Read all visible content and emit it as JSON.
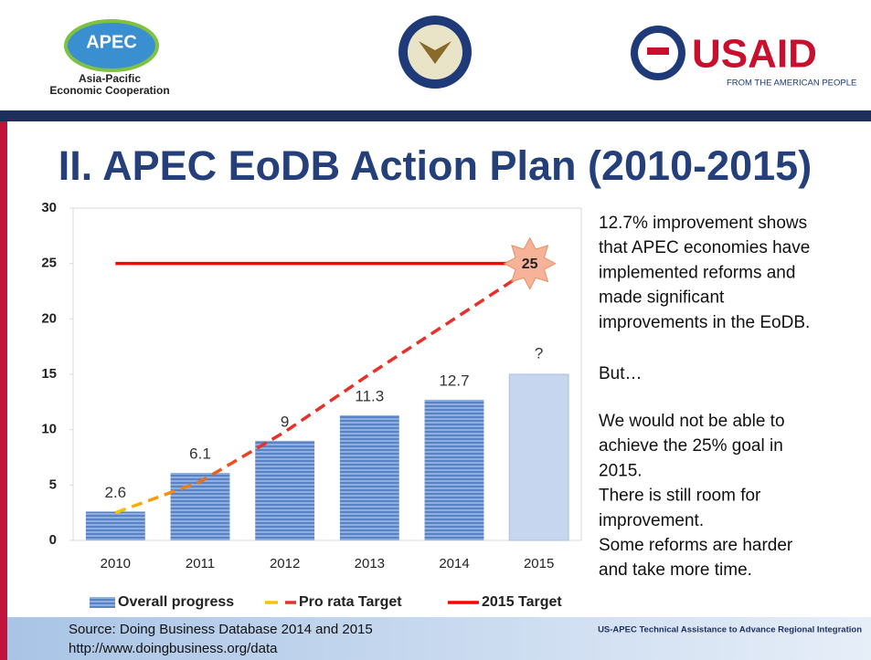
{
  "header": {
    "apec_logo": {
      "mark": "APEC",
      "line1": "Asia-Pacific",
      "line2": "Economic Cooperation"
    },
    "usaid_logo": {
      "mark": "USAID",
      "tagline": "FROM THE AMERICAN PEOPLE"
    }
  },
  "title": "II. APEC EoDB Action Plan (2010-2015)",
  "chart_data": {
    "type": "bar",
    "categories": [
      "2010",
      "2011",
      "2012",
      "2013",
      "2014",
      "2015"
    ],
    "ylim": [
      0,
      30
    ],
    "yticks": [
      0,
      5,
      10,
      15,
      20,
      25,
      30
    ],
    "series": [
      {
        "name": "Overall progress",
        "type": "bar",
        "color": "#6d93cf",
        "values": [
          2.6,
          6.1,
          9,
          11.3,
          12.7,
          null
        ],
        "value_labels": [
          "2.6",
          "6.1",
          "9",
          "11.3",
          "12.7",
          null
        ]
      },
      {
        "name": "Pro rata Target",
        "type": "line",
        "dashed": true,
        "color": "#e8302a",
        "start_color": "#f5c400",
        "values": [
          2.5,
          5.3,
          9.8,
          15,
          20,
          25
        ]
      },
      {
        "name": "2015 Target",
        "type": "line",
        "dashed": false,
        "color": "#ff0000",
        "values": [
          25,
          25,
          25,
          25,
          25,
          25
        ]
      }
    ],
    "annotations": [
      {
        "text": "?",
        "category": 5,
        "value": 15,
        "kind": "bar",
        "color": "#c5d6ee"
      },
      {
        "text": "25",
        "category": 5,
        "value": 25,
        "kind": "star",
        "color": "#f7b39a"
      }
    ],
    "legend": "bottom"
  },
  "side_text": {
    "paragraphs": [
      [
        "12.7% improvement shows",
        "that APEC economies have",
        "implemented reforms  and",
        "made significant",
        "improvements in the EoDB."
      ],
      [
        "But…"
      ],
      [
        "We would not be able to",
        "achieve the 25% goal in",
        "2015.",
        "There is still room for",
        "improvement.",
        "Some reforms are harder",
        "and take more time."
      ]
    ]
  },
  "footer": {
    "source": "Source: Doing Business Database 2014 and 2015",
    "url": "http://www.doingbusiness.org/data",
    "program": "US-APEC Technical Assistance to Advance Regional Integration"
  }
}
